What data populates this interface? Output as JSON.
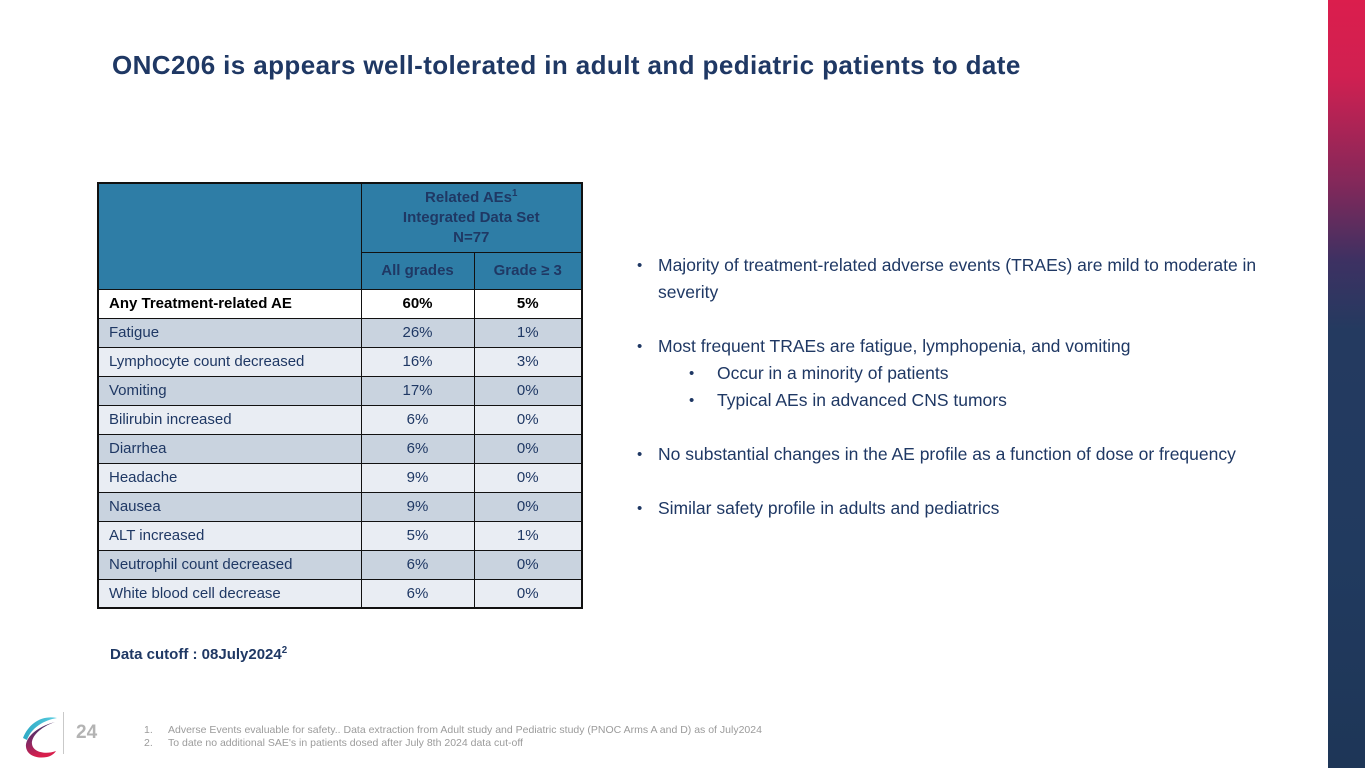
{
  "slide": {
    "title": "ONC206 is appears well-tolerated in adult and pediatric patients to date",
    "table": {
      "header": {
        "title_line1": "Related AEs",
        "title_sup1": "1",
        "title_line2": "Integrated Data Set",
        "title_line3": "N=77",
        "col_all_grades": "All grades",
        "col_grade3": "Grade ≥ 3"
      },
      "rows": [
        {
          "label": "Any Treatment-related AE",
          "all_grades": "60%",
          "grade3": "5%",
          "emphasis": true
        },
        {
          "label": "Fatigue",
          "all_grades": "26%",
          "grade3": "1%"
        },
        {
          "label": "Lymphocyte count decreased",
          "all_grades": "16%",
          "grade3": "3%"
        },
        {
          "label": "Vomiting",
          "all_grades": "17%",
          "grade3": "0%"
        },
        {
          "label": "Bilirubin increased",
          "all_grades": "6%",
          "grade3": "0%"
        },
        {
          "label": "Diarrhea",
          "all_grades": "6%",
          "grade3": "0%"
        },
        {
          "label": "Headache",
          "all_grades": "9%",
          "grade3": "0%"
        },
        {
          "label": "Nausea",
          "all_grades": "9%",
          "grade3": "0%"
        },
        {
          "label": "ALT increased",
          "all_grades": "5%",
          "grade3": "1%"
        },
        {
          "label": "Neutrophil count decreased",
          "all_grades": "6%",
          "grade3": "0%"
        },
        {
          "label": "White blood cell decrease",
          "all_grades": "6%",
          "grade3": "0%"
        }
      ]
    },
    "data_cutoff": {
      "text": "Data cutoff : 08July2024",
      "sup": "2"
    },
    "bullets": [
      {
        "text": "Majority of treatment-related adverse events (TRAEs) are mild to moderate in severity",
        "level": 1,
        "gap": false
      },
      {
        "text": "Most frequent TRAEs are fatigue, lymphopenia, and vomiting",
        "level": 1,
        "gap": true
      },
      {
        "text": "Occur in a minority of patients",
        "level": 2,
        "gap": false
      },
      {
        "text": "Typical AEs in advanced CNS tumors",
        "level": 2,
        "gap": false
      },
      {
        "text": "No substantial changes in the AE profile as a function of dose or frequency",
        "level": 1,
        "gap": true
      },
      {
        "text": "Similar safety profile in adults and pediatrics",
        "level": 1,
        "gap": true
      }
    ],
    "footer": {
      "page_number": "24",
      "footnotes": [
        {
          "num": "1.",
          "text": "Adverse Events evaluable for safety.. Data extraction from Adult study and Pediatric study (PNOC Arms A and D) as of July2024"
        },
        {
          "num": "2.",
          "text": "To date no additional SAE's in patients dosed after July 8th 2024 data cut-off"
        }
      ]
    },
    "colors": {
      "title_navy": "#1F3864",
      "table_header_teal": "#2E7DA6",
      "row_dark": "#C9D3DF",
      "row_light": "#E9EDF3",
      "edge_bar_top": "#DB1E4D",
      "edge_bar_bottom": "#1E3657",
      "footnote_gray": "#9b9b9b",
      "logo_cyan": "#3FBFD4",
      "logo_crimson": "#D81E4C"
    }
  }
}
